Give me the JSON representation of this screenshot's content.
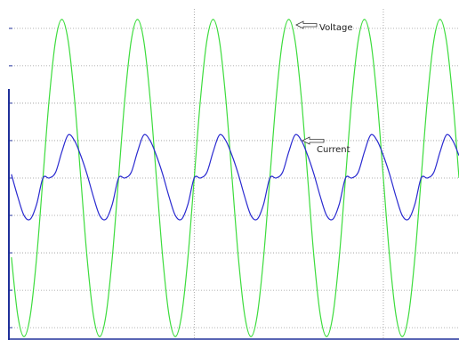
{
  "chart_data": {
    "type": "line",
    "x": [
      0.083,
      0.167,
      0.25,
      0.333,
      0.417,
      0.5,
      0.583,
      0.667,
      0.75,
      0.833,
      0.917,
      1,
      1.083,
      1.167,
      1.25,
      1.333,
      1.417,
      1.5,
      1.583,
      1.667,
      1.75,
      1.833,
      1.917,
      2,
      2.083,
      2.167,
      2.25,
      2.333,
      2.417,
      2.5,
      2.583,
      2.667,
      2.75,
      2.833,
      2.917,
      3,
      3.083,
      3.167,
      3.25,
      3.333,
      3.417,
      3.5,
      3.583,
      3.667,
      3.75,
      3.833,
      3.917,
      4,
      4.083,
      4.167,
      4.25,
      4.333,
      4.417,
      4.5,
      4.583,
      4.667,
      4.75,
      4.833,
      4.917,
      5,
      5.083,
      5.167,
      5.25,
      5.333,
      5.417,
      5.5,
      5.583,
      5.667,
      5.75,
      5.833,
      5.917,
      6
    ],
    "series": [
      {
        "name": "Voltage",
        "color": "#3ddc3d",
        "values": [
          -2.12,
          -3.67,
          -4.24,
          -3.67,
          -2.12,
          0,
          2.12,
          3.67,
          4.24,
          3.67,
          2.12,
          0,
          -2.12,
          -3.67,
          -4.24,
          -3.67,
          -2.12,
          0,
          2.12,
          3.67,
          4.24,
          3.67,
          2.12,
          0,
          -2.12,
          -3.67,
          -4.24,
          -3.67,
          -2.12,
          0,
          2.12,
          3.67,
          4.24,
          3.67,
          2.12,
          0,
          -2.12,
          -3.67,
          -4.24,
          -3.67,
          -2.12,
          0,
          2.12,
          3.67,
          4.24,
          3.67,
          2.12,
          0,
          -2.12,
          -3.67,
          -4.24,
          -3.67,
          -2.12,
          0,
          2.12,
          3.67,
          4.24,
          3.67,
          2.12,
          0,
          -2.12,
          -3.67,
          -4.24,
          -3.67,
          -2.12,
          0,
          2.12,
          3.67,
          4.24,
          3.67,
          2.12,
          0
        ]
      },
      {
        "name": "Current",
        "color": "#2a2ad0",
        "values": [
          0.1,
          -0.5,
          -1.0,
          -1.1,
          -0.7,
          0,
          0,
          0.15,
          0.7,
          1.15,
          1.0,
          0.6,
          0.1,
          -0.5,
          -1.0,
          -1.1,
          -0.7,
          0,
          0,
          0.15,
          0.7,
          1.15,
          1.0,
          0.6,
          0.1,
          -0.5,
          -1.0,
          -1.1,
          -0.7,
          0,
          0,
          0.15,
          0.7,
          1.15,
          1.0,
          0.6,
          0.1,
          -0.5,
          -1.0,
          -1.1,
          -0.7,
          0,
          0,
          0.15,
          0.7,
          1.15,
          1.0,
          0.6,
          0.1,
          -0.5,
          -1.0,
          -1.1,
          -0.7,
          0,
          0,
          0.15,
          0.7,
          1.15,
          1.0,
          0.6,
          0.1,
          -0.5,
          -1.0,
          -1.1,
          -0.7,
          0,
          0,
          0.15,
          0.7,
          1.15,
          1.0,
          0.6
        ]
      }
    ],
    "xlim": [
      0.05,
      6.0
    ],
    "xticks": [
      2.5,
      5
    ],
    "ylim": [
      -4.33,
      4.52
    ],
    "yticks": [
      -4,
      -3,
      -2,
      -1,
      0,
      1,
      2,
      3,
      4
    ],
    "grid": true
  }
}
